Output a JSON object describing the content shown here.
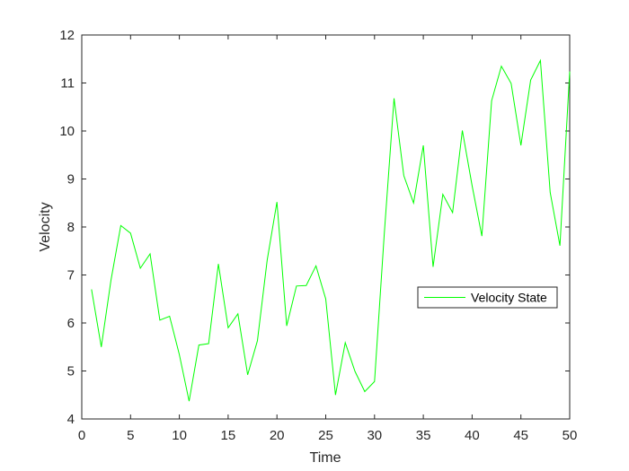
{
  "chart_data": {
    "type": "line",
    "title": "",
    "xlabel": "Time",
    "ylabel": "Velocity",
    "xlim": [
      0,
      50
    ],
    "ylim": [
      4,
      12
    ],
    "xticks": [
      0,
      5,
      10,
      15,
      20,
      25,
      30,
      35,
      40,
      45,
      50
    ],
    "yticks": [
      4,
      5,
      6,
      7,
      8,
      9,
      10,
      11,
      12
    ],
    "grid": false,
    "legend_position": "right",
    "series": [
      {
        "name": "Velocity State",
        "color": "#00ff00",
        "x": [
          1,
          2,
          3,
          4,
          5,
          6,
          7,
          8,
          9,
          10,
          11,
          12,
          13,
          14,
          15,
          16,
          17,
          18,
          19,
          20,
          21,
          22,
          23,
          24,
          25,
          26,
          27,
          28,
          29,
          30,
          31,
          32,
          33,
          34,
          35,
          36,
          37,
          38,
          39,
          40,
          41,
          42,
          43,
          44,
          45,
          46,
          47,
          48,
          49,
          50
        ],
        "y": [
          6.7,
          5.5,
          6.9,
          8.03,
          7.87,
          7.14,
          7.44,
          6.06,
          6.14,
          5.34,
          4.37,
          5.54,
          5.57,
          7.23,
          5.9,
          6.19,
          4.92,
          5.63,
          7.31,
          8.52,
          5.94,
          6.77,
          6.78,
          7.19,
          6.5,
          4.5,
          5.59,
          4.99,
          4.57,
          4.78,
          7.86,
          10.68,
          9.07,
          8.5,
          9.7,
          7.17,
          8.68,
          8.3,
          10.01,
          8.86,
          7.81,
          10.63,
          11.35,
          10.99,
          9.7,
          11.06,
          11.47,
          8.72,
          7.61,
          11.24
        ]
      }
    ]
  }
}
